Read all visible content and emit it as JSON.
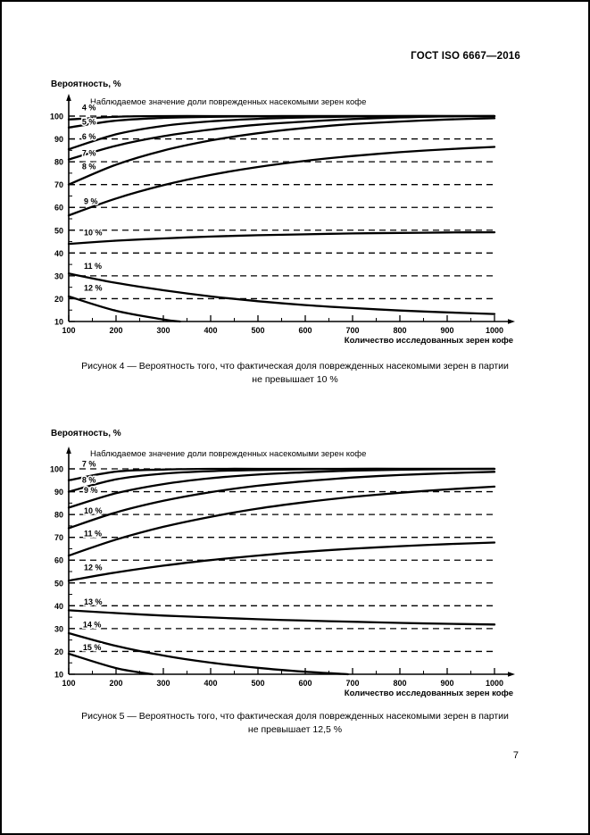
{
  "page": {
    "header": "ГОСТ ISO 6667—2016",
    "page_number": "7"
  },
  "chart_data": [
    {
      "figure": "Рисунок 4",
      "type": "line",
      "ylabel": "Вероятность, %",
      "xlabel": "Количество исследованных зерен кофе",
      "inner_title": "Наблюдаемое значение доли поврежденных насекомыми зерен кофе",
      "caption_line1": "Рисунок 4 — Вероятность того, что фактическая доля поврежденных насекомыми зерен в партии",
      "caption_line2": "не превышает 10 %",
      "xlim": [
        100,
        1000
      ],
      "ylim": [
        10,
        100
      ],
      "x_ticks": [
        100,
        200,
        300,
        400,
        500,
        600,
        700,
        800,
        900,
        1000
      ],
      "y_ticks": [
        10,
        20,
        30,
        40,
        50,
        60,
        70,
        80,
        90,
        100
      ],
      "grid": "dashed-horizontal",
      "legend": "curve labels inline",
      "series": [
        {
          "label": "4 %",
          "x": [
            100,
            200,
            300,
            400,
            500,
            600,
            700,
            800,
            900,
            1000
          ],
          "y": [
            98.5,
            99.7,
            100,
            100,
            100,
            100,
            100,
            100,
            100,
            100
          ],
          "label_pos": [
            128,
            102.5
          ]
        },
        {
          "label": "5 %",
          "x": [
            100,
            200,
            300,
            400,
            500,
            600,
            700,
            800,
            900,
            1000
          ],
          "y": [
            95,
            98,
            99.2,
            99.7,
            99.9,
            100,
            100,
            100,
            100,
            100
          ],
          "label_pos": [
            128,
            96.3
          ]
        },
        {
          "label": "6 %",
          "x": [
            100,
            200,
            300,
            400,
            500,
            600,
            700,
            800,
            900,
            1000
          ],
          "y": [
            85.5,
            92,
            95.7,
            97.7,
            98.8,
            99.4,
            99.8,
            100,
            100,
            100
          ],
          "label_pos": [
            128,
            89.8
          ]
        },
        {
          "label": "7 %",
          "x": [
            100,
            200,
            300,
            400,
            500,
            600,
            700,
            800,
            900,
            1000
          ],
          "y": [
            81,
            87,
            91.2,
            94.1,
            96.2,
            97.6,
            98.7,
            99.4,
            99.9,
            100
          ],
          "label_pos": [
            128,
            82.5
          ]
        },
        {
          "label": "8 %",
          "x": [
            100,
            200,
            300,
            400,
            500,
            600,
            700,
            800,
            900,
            1000
          ],
          "y": [
            70,
            78.7,
            84.9,
            89.3,
            92.5,
            94.8,
            96.5,
            97.6,
            98.5,
            99.1
          ],
          "label_pos": [
            128,
            76.8
          ]
        },
        {
          "label": "9 %",
          "x": [
            100,
            200,
            300,
            400,
            500,
            600,
            700,
            800,
            900,
            1000
          ],
          "y": [
            56.5,
            63.9,
            69.7,
            74.2,
            77.7,
            80.4,
            82.5,
            84.2,
            85.5,
            86.5
          ],
          "label_pos": [
            132,
            61.5
          ]
        },
        {
          "label": "10 %",
          "x": [
            100,
            200,
            300,
            400,
            500,
            600,
            700,
            800,
            900,
            1000
          ],
          "y": [
            44,
            45.4,
            46.4,
            47.2,
            47.8,
            48.2,
            48.6,
            48.8,
            49,
            49.1
          ],
          "label_pos": [
            132,
            47.8
          ]
        },
        {
          "label": "11 %",
          "x": [
            100,
            200,
            300,
            400,
            500,
            600,
            700,
            800,
            900,
            1000
          ],
          "y": [
            31,
            26.9,
            23.7,
            21,
            18.9,
            17.2,
            15.9,
            14.8,
            14,
            13.3
          ],
          "label_pos": [
            132,
            33
          ]
        },
        {
          "label": "12 %",
          "x": [
            100,
            200,
            300,
            335
          ],
          "y": [
            21,
            14.7,
            10.9,
            10
          ],
          "label_pos": [
            132,
            23.5
          ]
        }
      ]
    },
    {
      "figure": "Рисунок 5",
      "type": "line",
      "ylabel": "Вероятность, %",
      "xlabel": "Количество исследованных зерен кофе",
      "inner_title": "Наблюдаемое значение доли поврежденных насекомыми зерен кофе",
      "caption_line1": "Рисунок 5 — Вероятность того, что фактическая доля поврежденных насекомыми зерен в партии",
      "caption_line2": "не превышает 12,5 %",
      "xlim": [
        100,
        1000
      ],
      "ylim": [
        10,
        100
      ],
      "x_ticks": [
        100,
        200,
        300,
        400,
        500,
        600,
        700,
        800,
        900,
        1000
      ],
      "y_ticks": [
        10,
        20,
        30,
        40,
        50,
        60,
        70,
        80,
        90,
        100
      ],
      "grid": "dashed-horizontal",
      "legend": "curve labels inline",
      "series": [
        {
          "label": "7 %",
          "x": [
            100,
            200,
            300,
            400,
            500,
            600,
            700,
            800,
            900,
            1000
          ],
          "y": [
            95,
            98.8,
            99.7,
            100,
            100,
            100,
            100,
            100,
            100,
            100
          ],
          "label_pos": [
            128,
            101
          ]
        },
        {
          "label": "8 %",
          "x": [
            100,
            200,
            300,
            400,
            500,
            600,
            700,
            800,
            900,
            1000
          ],
          "y": [
            90,
            95.4,
            97.9,
            99,
            99.5,
            99.8,
            100,
            100,
            100,
            100
          ],
          "label_pos": [
            128,
            94
          ]
        },
        {
          "label": "9 %",
          "x": [
            100,
            200,
            300,
            400,
            500,
            600,
            700,
            800,
            900,
            1000
          ],
          "y": [
            83,
            89.3,
            93.3,
            95.9,
            97.5,
            98.5,
            99.2,
            99.6,
            99.9,
            100
          ],
          "label_pos": [
            132,
            89.5
          ]
        },
        {
          "label": "10 %",
          "x": [
            100,
            200,
            300,
            400,
            500,
            600,
            700,
            800,
            900,
            1000
          ],
          "y": [
            74,
            80.9,
            86,
            89.8,
            92.6,
            94.6,
            96.2,
            97.3,
            98.1,
            98.7
          ],
          "label_pos": [
            132,
            80.5
          ]
        },
        {
          "label": "11 %",
          "x": [
            100,
            200,
            300,
            400,
            500,
            600,
            700,
            800,
            900,
            1000
          ],
          "y": [
            62,
            69,
            74.6,
            79,
            82.6,
            85.4,
            87.7,
            89.5,
            91,
            92.2
          ],
          "label_pos": [
            132,
            70.5
          ]
        },
        {
          "label": "12 %",
          "x": [
            100,
            200,
            300,
            400,
            500,
            600,
            700,
            800,
            900,
            1000
          ],
          "y": [
            51,
            54.6,
            57.6,
            60,
            62,
            63.7,
            65,
            66.1,
            67,
            67.7
          ],
          "label_pos": [
            132,
            55.5
          ]
        },
        {
          "label": "13 %",
          "x": [
            100,
            200,
            300,
            400,
            500,
            600,
            700,
            800,
            900,
            1000
          ],
          "y": [
            38,
            36.8,
            35.7,
            34.9,
            34.1,
            33.5,
            33,
            32.5,
            32.1,
            31.8
          ],
          "label_pos": [
            132,
            40.5
          ]
        },
        {
          "label": "14 %",
          "x": [
            100,
            200,
            300,
            400,
            500,
            600,
            690
          ],
          "y": [
            28,
            22.4,
            18.2,
            15.1,
            12.8,
            11.1,
            10
          ],
          "label_pos": [
            130,
            30.5
          ]
        },
        {
          "label": "15 %",
          "x": [
            100,
            200,
            277
          ],
          "y": [
            19,
            12.7,
            10
          ],
          "label_pos": [
            130,
            20.5
          ]
        }
      ]
    }
  ]
}
